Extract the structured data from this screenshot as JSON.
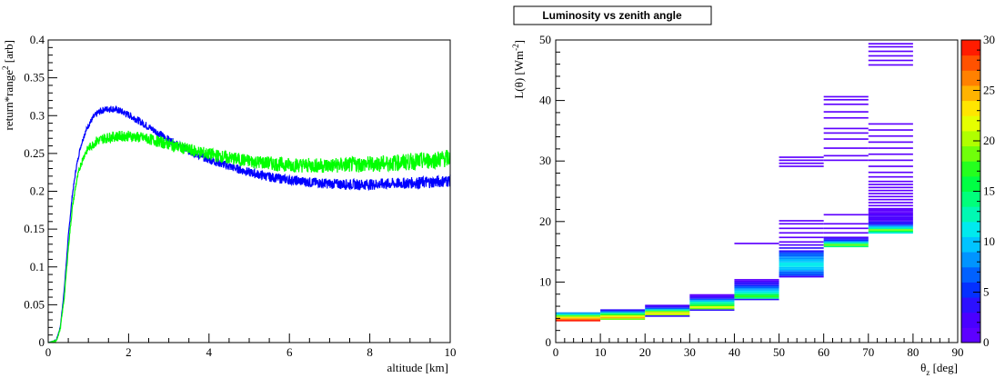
{
  "chart_data": [
    {
      "type": "line",
      "title": "",
      "xlabel": "altitude [km]",
      "ylabel": "return*range",
      "ylabel_sup": "2",
      "ylabel_suffix": " [arb]",
      "xlim": [
        0,
        10
      ],
      "ylim": [
        0,
        0.4
      ],
      "x_ticks": [
        "0",
        "2",
        "4",
        "6",
        "8",
        "10"
      ],
      "y_ticks": [
        "0",
        "0.05",
        "0.1",
        "0.15",
        "0.2",
        "0.25",
        "0.3",
        "0.35",
        "0.4"
      ],
      "grid": false,
      "series": [
        {
          "color": "#0000ff",
          "x": [
            0,
            0.2,
            0.3,
            0.4,
            0.5,
            0.6,
            0.7,
            0.8,
            0.9,
            1.0,
            1.1,
            1.2,
            1.3,
            1.4,
            1.5,
            1.6,
            1.8,
            2.0,
            2.2,
            2.5,
            2.8,
            3.0,
            3.5,
            4.0,
            4.5,
            5.0,
            5.5,
            6.0,
            6.5,
            7.0,
            7.5,
            8.0,
            8.5,
            9.0,
            9.5,
            10.0
          ],
          "y": [
            0,
            0.003,
            0.02,
            0.07,
            0.14,
            0.195,
            0.232,
            0.258,
            0.275,
            0.287,
            0.296,
            0.302,
            0.306,
            0.308,
            0.309,
            0.309,
            0.306,
            0.301,
            0.295,
            0.285,
            0.275,
            0.268,
            0.253,
            0.242,
            0.233,
            0.225,
            0.219,
            0.215,
            0.212,
            0.21,
            0.209,
            0.209,
            0.21,
            0.211,
            0.212,
            0.214
          ],
          "noise": 0.004
        },
        {
          "color": "#00ff00",
          "x": [
            0,
            0.2,
            0.3,
            0.4,
            0.5,
            0.6,
            0.7,
            0.8,
            0.9,
            1.0,
            1.2,
            1.4,
            1.6,
            1.8,
            2.0,
            2.3,
            2.6,
            3.0,
            3.5,
            4.0,
            4.5,
            5.0,
            5.5,
            6.0,
            6.5,
            7.0,
            7.5,
            8.0,
            8.5,
            9.0,
            9.5,
            10.0
          ],
          "y": [
            0,
            0.002,
            0.018,
            0.06,
            0.125,
            0.178,
            0.212,
            0.234,
            0.248,
            0.257,
            0.266,
            0.27,
            0.272,
            0.273,
            0.273,
            0.271,
            0.268,
            0.262,
            0.255,
            0.249,
            0.244,
            0.24,
            0.237,
            0.235,
            0.234,
            0.234,
            0.235,
            0.236,
            0.237,
            0.239,
            0.241,
            0.244
          ],
          "noise": 0.006
        }
      ]
    },
    {
      "type": "heatmap",
      "title": "Luminosity vs zenith angle",
      "xlabel": "θ",
      "xlabel_sub": "z",
      "xlabel_suffix": " [deg]",
      "ylabel": "L(θ) [Wm",
      "ylabel_sup": "-2",
      "ylabel_suffix": "]",
      "xlim": [
        0,
        90
      ],
      "ylim": [
        0,
        50
      ],
      "zlim": [
        0,
        30
      ],
      "x_ticks": [
        "0",
        "10",
        "20",
        "30",
        "40",
        "50",
        "60",
        "70",
        "80",
        "90"
      ],
      "y_ticks": [
        "0",
        "10",
        "20",
        "30",
        "40",
        "50"
      ],
      "z_ticks": [
        "0",
        "5",
        "10",
        "15",
        "20",
        "25",
        "30"
      ],
      "grid": false,
      "bin_height": 0.25,
      "columns": [
        {
          "x": [
            0,
            10
          ],
          "cells": [
            [
              3.5,
              29
            ],
            [
              3.75,
              26
            ],
            [
              4.0,
              23
            ],
            [
              4.25,
              18
            ],
            [
              4.5,
              13
            ],
            [
              4.75,
              8
            ]
          ]
        },
        {
          "x": [
            10,
            20
          ],
          "cells": [
            [
              3.75,
              18
            ],
            [
              4.0,
              24
            ],
            [
              4.25,
              22
            ],
            [
              4.5,
              17
            ],
            [
              4.75,
              12
            ],
            [
              5.0,
              7
            ],
            [
              5.25,
              3
            ]
          ]
        },
        {
          "x": [
            20,
            30
          ],
          "cells": [
            [
              4.25,
              3
            ],
            [
              4.5,
              20
            ],
            [
              4.75,
              23
            ],
            [
              5.0,
              18
            ],
            [
              5.25,
              12
            ],
            [
              5.5,
              7
            ],
            [
              5.75,
              4
            ],
            [
              6.0,
              2
            ]
          ]
        },
        {
          "x": [
            30,
            40
          ],
          "cells": [
            [
              5.25,
              3
            ],
            [
              5.5,
              18
            ],
            [
              5.75,
              21
            ],
            [
              6.0,
              17
            ],
            [
              6.25,
              14
            ],
            [
              6.5,
              12
            ],
            [
              6.75,
              9
            ],
            [
              7.0,
              6
            ],
            [
              7.25,
              4
            ],
            [
              7.5,
              2
            ],
            [
              7.75,
              1
            ]
          ]
        },
        {
          "x": [
            40,
            50
          ],
          "cells": [
            [
              7.0,
              4
            ],
            [
              7.25,
              14
            ],
            [
              7.5,
              17
            ],
            [
              7.75,
              15
            ],
            [
              8.0,
              13
            ],
            [
              8.25,
              11
            ],
            [
              8.5,
              9
            ],
            [
              8.75,
              8
            ],
            [
              9.0,
              6
            ],
            [
              9.25,
              5
            ],
            [
              9.5,
              4
            ],
            [
              9.75,
              3
            ],
            [
              10.0,
              2
            ],
            [
              10.25,
              1
            ],
            [
              16.25,
              1
            ]
          ]
        },
        {
          "x": [
            50,
            60
          ],
          "cells": [
            [
              10.75,
              2
            ],
            [
              11.0,
              5
            ],
            [
              11.25,
              6
            ],
            [
              11.5,
              7
            ],
            [
              11.75,
              8
            ],
            [
              12.0,
              9
            ],
            [
              12.25,
              10
            ],
            [
              12.5,
              11
            ],
            [
              12.75,
              11
            ],
            [
              13.0,
              11
            ],
            [
              13.25,
              10
            ],
            [
              13.5,
              9
            ],
            [
              13.75,
              8
            ],
            [
              14.0,
              8
            ],
            [
              14.25,
              7
            ],
            [
              14.5,
              6
            ],
            [
              14.75,
              5
            ],
            [
              15.0,
              4
            ],
            [
              15.5,
              3
            ],
            [
              16.0,
              2
            ],
            [
              16.5,
              1
            ],
            [
              17.25,
              1
            ],
            [
              18.0,
              1
            ],
            [
              18.75,
              1
            ],
            [
              19.5,
              1
            ],
            [
              20.0,
              1
            ],
            [
              29.0,
              1
            ],
            [
              29.5,
              1
            ],
            [
              30.0,
              1
            ],
            [
              30.5,
              1
            ]
          ]
        },
        {
          "x": [
            60,
            70
          ],
          "cells": [
            [
              15.75,
              14
            ],
            [
              16.0,
              18
            ],
            [
              16.25,
              14
            ],
            [
              16.5,
              9
            ],
            [
              16.75,
              5
            ],
            [
              17.0,
              3
            ],
            [
              17.25,
              2
            ],
            [
              18.0,
              1
            ],
            [
              18.75,
              1
            ],
            [
              19.5,
              1
            ],
            [
              21.0,
              1
            ],
            [
              30.0,
              1
            ],
            [
              30.75,
              1
            ],
            [
              32.0,
              1
            ],
            [
              33.5,
              1
            ],
            [
              34.5,
              1
            ],
            [
              35.25,
              1
            ],
            [
              37.0,
              1
            ],
            [
              38.0,
              1
            ],
            [
              39.25,
              1
            ],
            [
              40.0,
              1
            ],
            [
              40.5,
              1
            ]
          ]
        },
        {
          "x": [
            70,
            80
          ],
          "cells": [
            [
              18.0,
              11
            ],
            [
              18.25,
              16
            ],
            [
              18.5,
              19
            ],
            [
              18.75,
              13
            ],
            [
              19.0,
              9
            ],
            [
              19.25,
              6
            ],
            [
              19.5,
              4
            ],
            [
              19.75,
              3
            ],
            [
              20.0,
              2
            ],
            [
              20.25,
              2
            ],
            [
              20.5,
              2
            ],
            [
              20.75,
              2
            ],
            [
              21.0,
              2
            ],
            [
              21.25,
              1
            ],
            [
              21.5,
              1
            ],
            [
              21.75,
              1
            ],
            [
              22.0,
              1
            ],
            [
              22.5,
              1
            ],
            [
              23.0,
              1
            ],
            [
              23.5,
              1
            ],
            [
              24.0,
              1
            ],
            [
              24.5,
              1
            ],
            [
              25.0,
              1
            ],
            [
              25.5,
              1
            ],
            [
              26.0,
              1
            ],
            [
              26.5,
              1
            ],
            [
              27.25,
              1
            ],
            [
              28.0,
              1
            ],
            [
              29.0,
              1
            ],
            [
              30.0,
              1
            ],
            [
              31.0,
              1
            ],
            [
              32.0,
              1
            ],
            [
              33.0,
              1
            ],
            [
              34.0,
              1
            ],
            [
              35.0,
              1
            ],
            [
              36.0,
              1
            ],
            [
              45.75,
              1
            ],
            [
              46.5,
              1
            ],
            [
              47.25,
              1
            ],
            [
              48.0,
              1
            ],
            [
              48.75,
              1
            ],
            [
              49.25,
              1
            ]
          ]
        }
      ]
    }
  ]
}
